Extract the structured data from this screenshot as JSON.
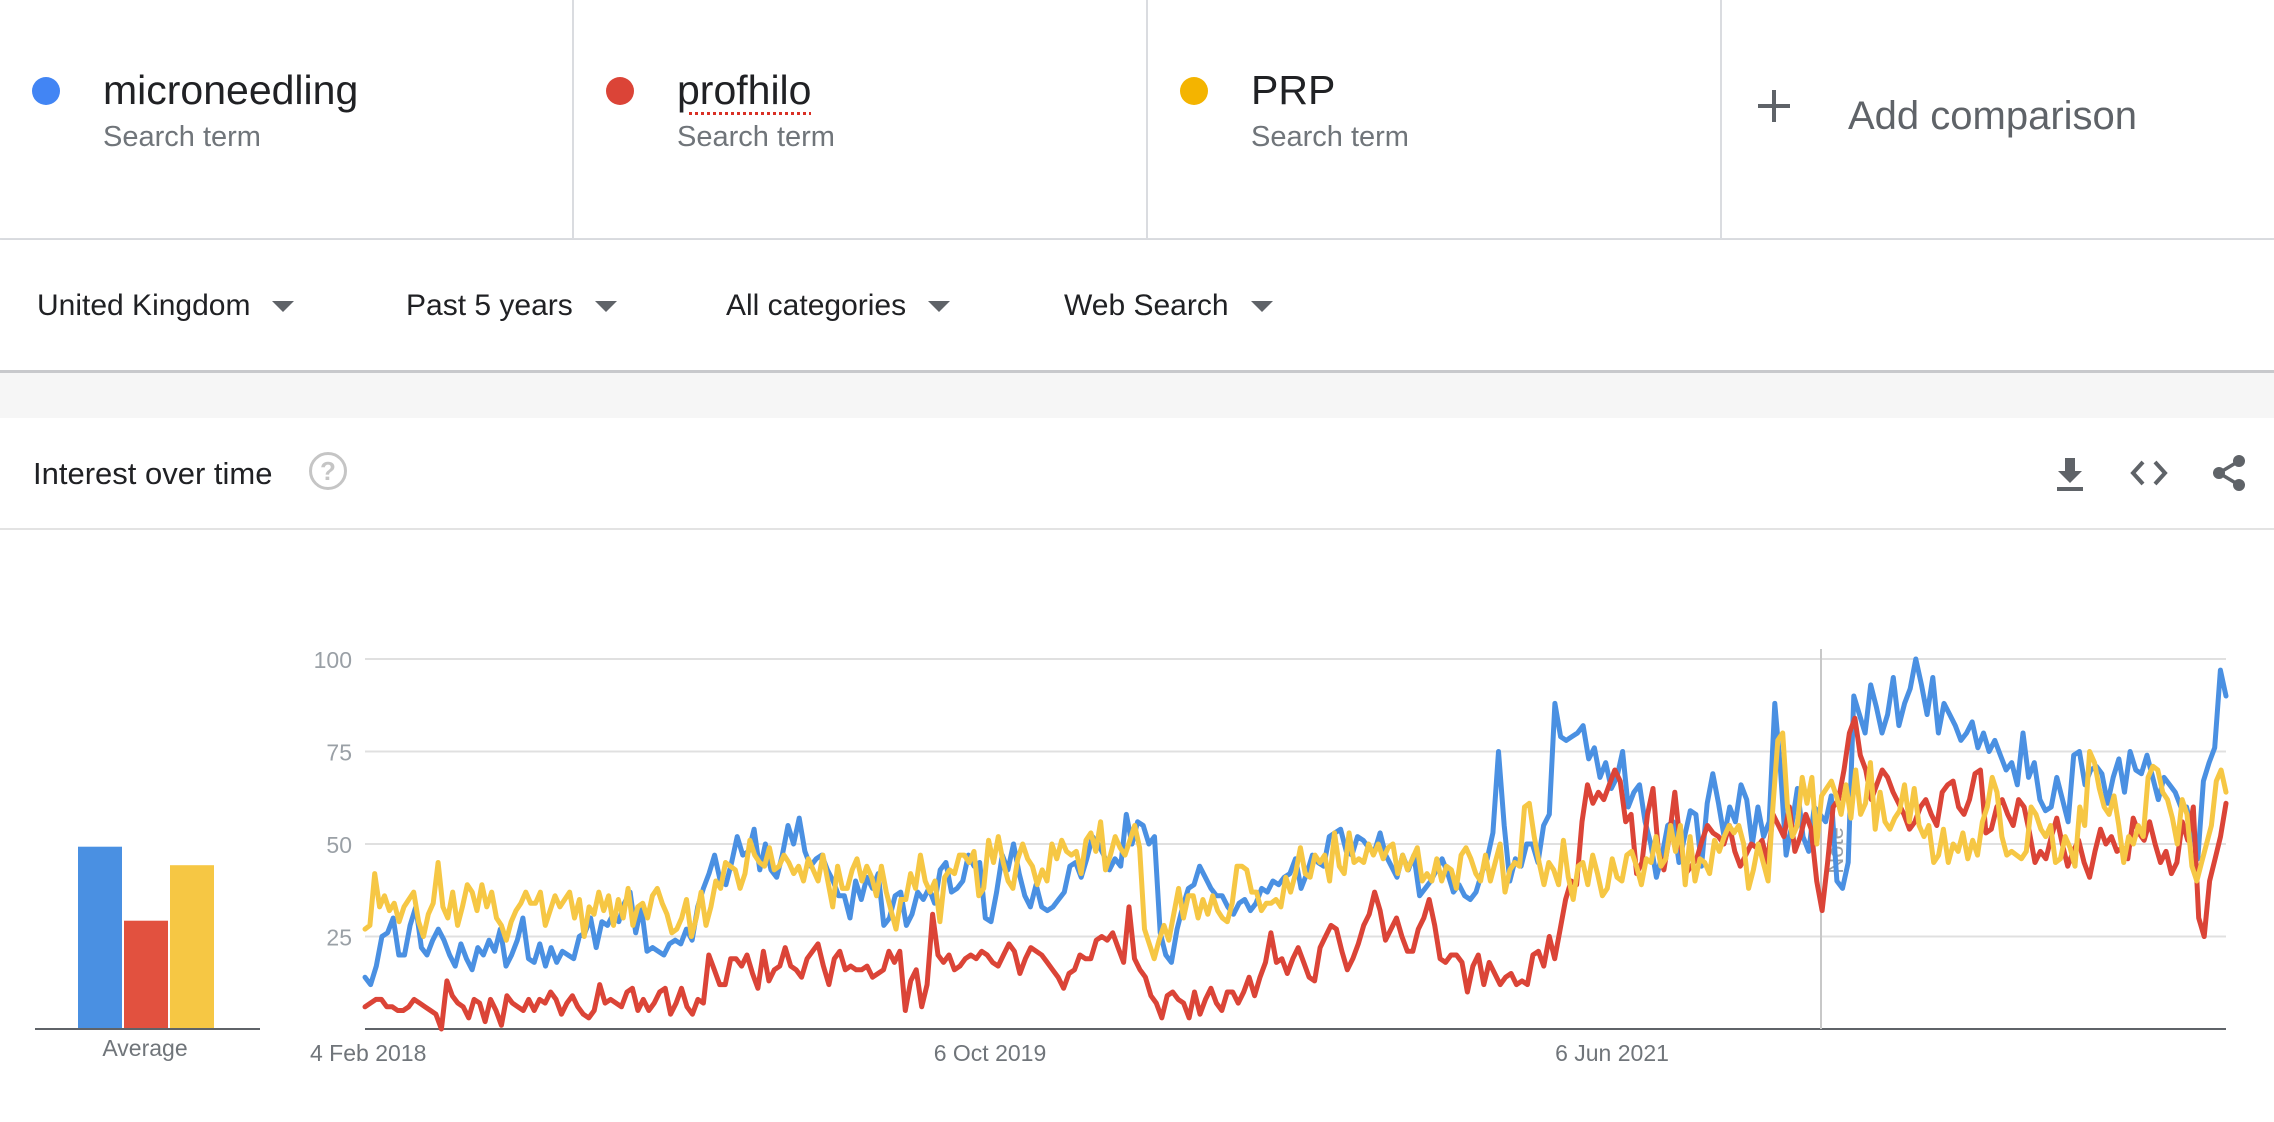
{
  "terms": [
    {
      "name": "microneedling",
      "sub": "Search term",
      "color": "#4285f4"
    },
    {
      "name": "profhilo",
      "sub": "Search term",
      "color": "#db4437"
    },
    {
      "name": "PRP",
      "sub": "Search term",
      "color": "#f4b400"
    }
  ],
  "add_comparison": "Add comparison",
  "filters": {
    "region": "United Kingdom",
    "time": "Past 5 years",
    "category": "All categories",
    "search_type": "Web Search"
  },
  "card": {
    "title": "Interest over time",
    "help_icon": "question-circle-icon",
    "tools": [
      "download-icon",
      "embed-code-icon",
      "share-icon"
    ]
  },
  "average": {
    "label": "Average"
  },
  "chart_data": {
    "type": "line",
    "y_ticks": [
      25,
      50,
      75,
      100
    ],
    "ylim": [
      0,
      100
    ],
    "x_tick_labels": [
      "4 Feb 2018",
      "6 Oct 2019",
      "6 Jun 2021"
    ],
    "annotation": "Note",
    "averages": {
      "microneedling": 49,
      "profhilo": 29,
      "PRP": 44
    },
    "series": [
      {
        "name": "microneedling",
        "color": "#4a90e2",
        "values": [
          14,
          12,
          17,
          25,
          26,
          30,
          20,
          20,
          28,
          33,
          22,
          20,
          24,
          27,
          24,
          20,
          17,
          23,
          19,
          16,
          22,
          20,
          24,
          21,
          27,
          17,
          20,
          24,
          30,
          19,
          18,
          23,
          17,
          22,
          18,
          21,
          20,
          19,
          25,
          26,
          30,
          22,
          29,
          28,
          31,
          29,
          34,
          37,
          26,
          33,
          21,
          22,
          21,
          20,
          23,
          24,
          23,
          27,
          24,
          33,
          38,
          42,
          47,
          40,
          39,
          45,
          52,
          47,
          48,
          54,
          43,
          50,
          43,
          41,
          47,
          55,
          50,
          57,
          48,
          44,
          46,
          47,
          43,
          40,
          36,
          36,
          30,
          40,
          35,
          41,
          38,
          42,
          28,
          30,
          36,
          37,
          28,
          31,
          37,
          35,
          38,
          34,
          43,
          45,
          37,
          38,
          40,
          47,
          44,
          45,
          30,
          29,
          37,
          47,
          43,
          50,
          42,
          36,
          33,
          39,
          33,
          32,
          33,
          35,
          37,
          44,
          45,
          41,
          46,
          52,
          50,
          47,
          43,
          46,
          44,
          58,
          50,
          56,
          55,
          50,
          52,
          26,
          20,
          18,
          27,
          33,
          38,
          39,
          44,
          41,
          38,
          36,
          36,
          33,
          31,
          34,
          35,
          32,
          34,
          38,
          37,
          40,
          39,
          41,
          42,
          46,
          38,
          42,
          47,
          45,
          44,
          52,
          53,
          54,
          48,
          47,
          52,
          51,
          49,
          48,
          53,
          47,
          44,
          41,
          47,
          43,
          47,
          36,
          38,
          40,
          43,
          46,
          42,
          37,
          39,
          36,
          35,
          37,
          42,
          46,
          53,
          75,
          55,
          40,
          46,
          44,
          50,
          50,
          45,
          55,
          58,
          88,
          79,
          78,
          79,
          80,
          82,
          73,
          76,
          68,
          72,
          65,
          68,
          75,
          60,
          64,
          66,
          56,
          50,
          41,
          47,
          55,
          56,
          45,
          52,
          59,
          58,
          44,
          61,
          69,
          61,
          52,
          60,
          56,
          66,
          62,
          50,
          60,
          52,
          56,
          88,
          70,
          47,
          55,
          65,
          52,
          48,
          60,
          58,
          56,
          63,
          40,
          38,
          45,
          90,
          85,
          80,
          93,
          87,
          80,
          85,
          95,
          82,
          88,
          92,
          100,
          93,
          85,
          95,
          80,
          88,
          85,
          82,
          78,
          80,
          83,
          76,
          80,
          75,
          78,
          74,
          70,
          72,
          66,
          80,
          68,
          72,
          62,
          59,
          60,
          68,
          62,
          56,
          74,
          75,
          66,
          70,
          71,
          69,
          61,
          68,
          73,
          64,
          75,
          70,
          69,
          74,
          68,
          62,
          68,
          66,
          64,
          60,
          60,
          54,
          46,
          67,
          72,
          76,
          97,
          90
        ]
      },
      {
        "name": "profhilo",
        "color": "#db4437",
        "values": [
          6,
          7,
          8,
          8,
          6,
          6,
          5,
          5,
          6,
          8,
          7,
          6,
          5,
          4,
          0,
          13,
          9,
          7,
          6,
          3,
          8,
          7,
          2,
          8,
          5,
          1,
          9,
          7,
          6,
          5,
          8,
          5,
          8,
          7,
          10,
          8,
          4,
          7,
          9,
          6,
          4,
          3,
          5,
          12,
          7,
          8,
          7,
          6,
          10,
          11,
          5,
          8,
          5,
          7,
          10,
          11,
          4,
          7,
          11,
          6,
          4,
          8,
          7,
          20,
          16,
          12,
          12,
          19,
          19,
          17,
          20,
          15,
          11,
          21,
          13,
          16,
          17,
          22,
          17,
          16,
          14,
          19,
          21,
          23,
          17,
          12,
          19,
          21,
          16,
          17,
          16,
          16,
          17,
          14,
          15,
          16,
          21,
          18,
          21,
          5,
          13,
          16,
          6,
          12,
          31,
          20,
          18,
          20,
          16,
          17,
          19,
          20,
          19,
          21,
          20,
          18,
          17,
          20,
          23,
          21,
          15,
          19,
          22,
          21,
          20,
          18,
          16,
          14,
          11,
          15,
          16,
          20,
          19,
          19,
          24,
          25,
          24,
          26,
          22,
          18,
          33,
          19,
          16,
          14,
          9,
          7,
          3,
          9,
          10,
          8,
          7,
          3,
          10,
          4,
          8,
          11,
          7,
          5,
          10,
          10,
          7,
          10,
          14,
          9,
          14,
          18,
          26,
          18,
          19,
          15,
          19,
          22,
          18,
          14,
          13,
          22,
          25,
          28,
          27,
          21,
          16,
          19,
          23,
          28,
          31,
          37,
          32,
          24,
          27,
          30,
          25,
          21,
          21,
          27,
          30,
          35,
          28,
          19,
          18,
          20,
          20,
          18,
          10,
          17,
          20,
          12,
          18,
          15,
          12,
          14,
          15,
          12,
          13,
          12,
          20,
          21,
          17,
          25,
          19,
          27,
          35,
          40,
          39,
          56,
          66,
          61,
          64,
          62,
          66,
          70,
          67,
          56,
          58,
          42,
          45,
          58,
          65,
          48,
          43,
          52,
          64,
          50,
          42,
          44,
          46,
          51,
          55,
          53,
          52,
          50,
          55,
          48,
          44,
          47,
          50,
          49,
          51,
          45,
          58,
          55,
          52,
          60,
          48,
          52,
          58,
          54,
          40,
          32,
          45,
          60,
          62,
          70,
          80,
          84,
          74,
          70,
          62,
          66,
          70,
          68,
          64,
          61,
          58,
          54,
          56,
          60,
          62,
          58,
          55,
          64,
          66,
          67,
          60,
          58,
          62,
          69,
          70,
          53,
          54,
          60,
          62,
          58,
          55,
          62,
          60,
          53,
          45,
          48,
          46,
          52,
          57,
          50,
          44,
          48,
          51,
          45,
          41,
          48,
          54,
          50,
          52,
          48,
          49,
          46,
          57,
          53,
          51,
          56,
          50,
          45,
          48,
          42,
          45,
          56,
          51,
          60,
          30,
          25,
          40,
          46,
          52,
          61
        ]
      },
      {
        "name": "PRP",
        "color": "#f6c744",
        "values": [
          27,
          28,
          42,
          33,
          36,
          32,
          34,
          29,
          33,
          35,
          37,
          29,
          25,
          31,
          34,
          45,
          33,
          30,
          37,
          28,
          33,
          39,
          37,
          32,
          39,
          33,
          37,
          30,
          28,
          24,
          29,
          32,
          34,
          37,
          34,
          34,
          37,
          28,
          32,
          36,
          33,
          35,
          37,
          30,
          35,
          25,
          33,
          31,
          37,
          32,
          36,
          28,
          35,
          30,
          38,
          28,
          33,
          34,
          30,
          36,
          38,
          34,
          31,
          26,
          27,
          30,
          35,
          25,
          30,
          37,
          28,
          33,
          40,
          38,
          45,
          44,
          43,
          38,
          42,
          51,
          47,
          45,
          44,
          49,
          43,
          44,
          47,
          45,
          42,
          44,
          40,
          46,
          43,
          40,
          47,
          40,
          33,
          44,
          38,
          38,
          43,
          46,
          40,
          44,
          41,
          36,
          44,
          37,
          32,
          27,
          35,
          35,
          42,
          38,
          47,
          40,
          37,
          40,
          29,
          41,
          43,
          42,
          47,
          47,
          45,
          48,
          36,
          38,
          51,
          45,
          52,
          45,
          40,
          38,
          46,
          50,
          46,
          44,
          39,
          43,
          40,
          50,
          46,
          51,
          48,
          47,
          48,
          42,
          51,
          53,
          48,
          56,
          43,
          47,
          52,
          49,
          47,
          51,
          55,
          49,
          27,
          23,
          19,
          24,
          28,
          24,
          31,
          38,
          30,
          36,
          36,
          30,
          35,
          31,
          36,
          32,
          30,
          29,
          34,
          44,
          44,
          43,
          37,
          37,
          32,
          34,
          34,
          35,
          33,
          41,
          37,
          42,
          49,
          42,
          41,
          47,
          45,
          47,
          40,
          53,
          44,
          42,
          53,
          45,
          46,
          45,
          50,
          47,
          50,
          46,
          49,
          50,
          42,
          47,
          43,
          46,
          49,
          40,
          42,
          40,
          46,
          40,
          44,
          43,
          38,
          47,
          49,
          46,
          42,
          40,
          47,
          40,
          45,
          50,
          37,
          43,
          45,
          44,
          60,
          61,
          52,
          45,
          39,
          45,
          43,
          39,
          51,
          41,
          35,
          44,
          45,
          39,
          47,
          42,
          36,
          38,
          46,
          41,
          40,
          47,
          48,
          44,
          39,
          46,
          45,
          52,
          44,
          46,
          55,
          48,
          55,
          39,
          52,
          40,
          46,
          45,
          42,
          51,
          48,
          52,
          55,
          53,
          55,
          50,
          38,
          43,
          50,
          45,
          40,
          60,
          78,
          80,
          60,
          52,
          55,
          68,
          61,
          68,
          50,
          63,
          65,
          67,
          63,
          58,
          66,
          57,
          70,
          58,
          61,
          72,
          54,
          64,
          56,
          54,
          57,
          59,
          66,
          56,
          65,
          55,
          52,
          55,
          45,
          47,
          54,
          45,
          50,
          48,
          53,
          46,
          51,
          47,
          56,
          60,
          68,
          64,
          52,
          47,
          48,
          47,
          46,
          48,
          60,
          58,
          54,
          52,
          55,
          45,
          46,
          52,
          49,
          44,
          60,
          55,
          75,
          72,
          65,
          60,
          58,
          63,
          55,
          45,
          52,
          50,
          55,
          52,
          68,
          71,
          70,
          64,
          62,
          57,
          50,
          62,
          58,
          44,
          40,
          45,
          50,
          55,
          67,
          70,
          64
        ]
      }
    ]
  }
}
